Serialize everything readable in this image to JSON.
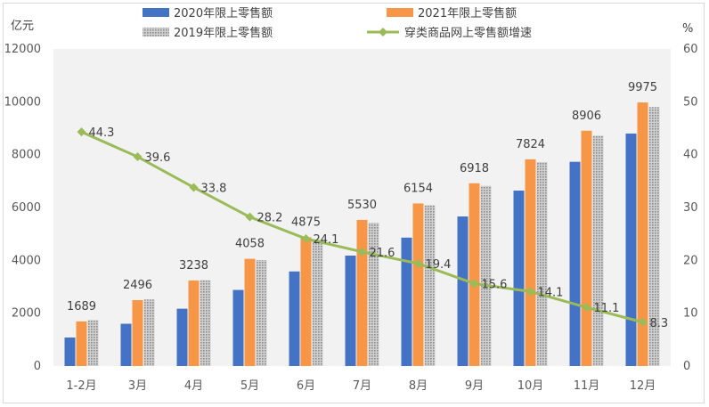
{
  "chart_data": {
    "type": "bar",
    "categories": [
      "1-2月",
      "3月",
      "4月",
      "5月",
      "6月",
      "7月",
      "8月",
      "9月",
      "10月",
      "11月",
      "12月"
    ],
    "series": [
      {
        "name": "2020年限上零售额",
        "kind": "bar",
        "color": "#4472c4",
        "values": [
          1080,
          1600,
          2170,
          2880,
          3580,
          4180,
          4860,
          5660,
          6640,
          7730,
          8800
        ]
      },
      {
        "name": "2021年限上零售额",
        "kind": "bar",
        "color": "#f79646",
        "values": [
          1689,
          2496,
          3238,
          4058,
          4875,
          5530,
          6154,
          6918,
          7824,
          8906,
          9975
        ]
      },
      {
        "name": "2019年限上零售额",
        "kind": "bar",
        "color": "#bfbfbf",
        "pattern": "dotted",
        "values": [
          1740,
          2520,
          3250,
          4010,
          4790,
          5420,
          6090,
          6820,
          7720,
          8720,
          9800
        ]
      },
      {
        "name": "穿类商品网上零售额增速",
        "kind": "line",
        "color": "#9bbb59",
        "axis": "right",
        "values": [
          44.3,
          39.6,
          33.8,
          28.2,
          24.1,
          21.6,
          19.4,
          15.6,
          14.1,
          11.1,
          8.3
        ]
      }
    ],
    "bar_labels_series": "2021年限上零售额",
    "left_axis": {
      "unit": "亿元",
      "range": [
        0,
        12000
      ],
      "ticks": [
        0,
        2000,
        4000,
        6000,
        8000,
        10000,
        12000
      ]
    },
    "right_axis": {
      "unit": "%",
      "range": [
        0,
        60
      ],
      "ticks": [
        0,
        10,
        20,
        30,
        40,
        50,
        60
      ]
    },
    "legend_position": "top",
    "grid": false
  }
}
